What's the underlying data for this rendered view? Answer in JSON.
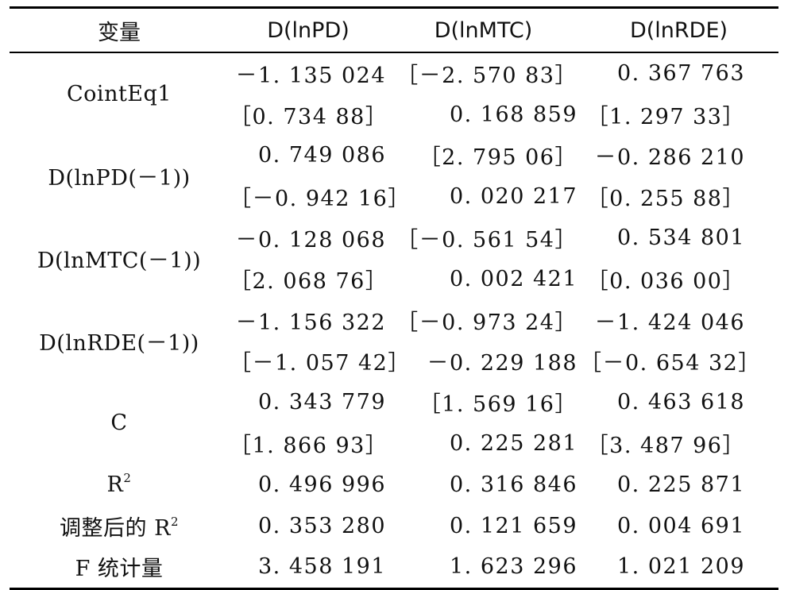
{
  "table": {
    "headers": [
      "变量",
      "D(lnPD)",
      "D(lnMTC)",
      "D(lnRDE)"
    ],
    "groups": [
      {
        "label": "CointEq1",
        "coef": [
          "－1. 135 024",
          "［－2. 570 83］",
          "0. 367 763"
        ],
        "tstat": [
          "［0. 734 88］",
          "0. 168 859",
          "［1. 297 33］"
        ]
      },
      {
        "label": "D(lnPD(－1))",
        "coef": [
          "0. 749 086",
          "［2. 795 06］",
          "－0. 286 210"
        ],
        "tstat": [
          "［－0. 942 16］",
          "0. 020 217",
          "［0. 255 88］"
        ]
      },
      {
        "label": "D(lnMTC(－1))",
        "coef": [
          "－0. 128 068",
          "［－0. 561 54］",
          "0. 534 801"
        ],
        "tstat": [
          "［2. 068 76］",
          "0. 002 421",
          "［0. 036 00］"
        ]
      },
      {
        "label": "D(lnRDE(－1))",
        "coef": [
          "－1. 156 322",
          "［－0. 973 24］",
          "－1. 424 046"
        ],
        "tstat": [
          "［－1. 057 42］",
          "－0. 229 188",
          "［－0. 654 32］"
        ]
      },
      {
        "label": "C",
        "coef": [
          "0. 343 779",
          "［1. 569 16］",
          "0. 463 618"
        ],
        "tstat": [
          "［1. 866 93］",
          "0. 225 281",
          "［3. 487 96］"
        ]
      }
    ],
    "stats": [
      {
        "label": "R",
        "sup": "2",
        "values": [
          "0. 496 996",
          "0. 316 846",
          "0. 225 871"
        ]
      },
      {
        "label": "调整后的 R",
        "sup": "2",
        "values": [
          "0. 353 280",
          "0. 121 659",
          "0. 004 691"
        ]
      },
      {
        "label": "F 统计量",
        "sup": "",
        "values": [
          "3. 458 191",
          "1. 623 296",
          "1. 021 209"
        ]
      }
    ]
  }
}
